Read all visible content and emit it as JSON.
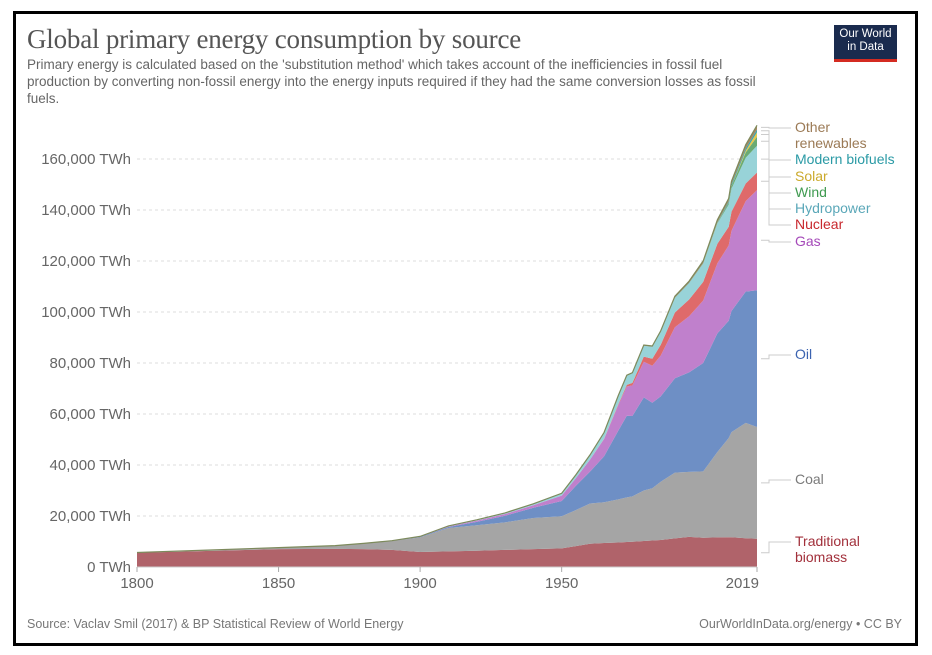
{
  "header": {
    "title": "Global primary energy consumption by source",
    "subtitle": "Primary energy is calculated based on the 'substitution method' which takes account of the inefficiencies in fossil fuel production by converting non-fossil energy into the energy inputs required if they had the same conversion losses as fossil fuels.",
    "logo_line1": "Our World",
    "logo_line2": "in Data"
  },
  "footer": {
    "source": "Source: Vaclav Smil (2017) & BP Statistical Review of World Energy",
    "link": "OurWorldInData.org/energy • CC BY"
  },
  "chart_data": {
    "type": "area",
    "stacked": true,
    "title": "Global primary energy consumption by source",
    "xlabel": "",
    "ylabel": "",
    "xlim": [
      1800,
      2019
    ],
    "ylim": [
      0,
      170000
    ],
    "y_ticks": [
      0,
      20000,
      40000,
      60000,
      80000,
      100000,
      120000,
      140000,
      160000
    ],
    "y_tick_labels": [
      "0 TWh",
      "20,000 TWh",
      "40,000 TWh",
      "60,000 TWh",
      "80,000 TWh",
      "100,000 TWh",
      "120,000 TWh",
      "140,000 TWh",
      "160,000 TWh"
    ],
    "x_ticks": [
      1800,
      1850,
      1900,
      1950,
      2019
    ],
    "x_tick_labels": [
      "1800",
      "1850",
      "1900",
      "1950",
      "2019"
    ],
    "grid": "horizontal-dashed",
    "legend_placement": "right-inline",
    "x": [
      1800,
      1850,
      1870,
      1880,
      1890,
      1900,
      1910,
      1920,
      1930,
      1940,
      1950,
      1955,
      1960,
      1965,
      1970,
      1973,
      1975,
      1979,
      1982,
      1985,
      1990,
      1995,
      2000,
      2005,
      2009,
      2010,
      2015,
      2019
    ],
    "series": [
      {
        "name": "Traditional biomass",
        "color": "#b0636a",
        "label_color": "#a2303b",
        "values": [
          5600,
          7000,
          7100,
          7000,
          6700,
          5900,
          6100,
          6400,
          6700,
          7000,
          7300,
          8200,
          9100,
          9400,
          9600,
          9800,
          9900,
          10200,
          10400,
          10600,
          11200,
          11800,
          11500,
          11600,
          11700,
          11700,
          11300,
          11100
        ]
      },
      {
        "name": "Coal",
        "color": "#a5a5a5",
        "label_color": "#7a7a7a",
        "values": [
          100,
          600,
          1300,
          2200,
          3500,
          5700,
          9200,
          10000,
          10800,
          12200,
          12600,
          14100,
          15800,
          16000,
          16900,
          17500,
          17800,
          19800,
          20500,
          22800,
          25800,
          25500,
          26000,
          33500,
          38900,
          41200,
          45200,
          43800
        ]
      },
      {
        "name": "Oil",
        "color": "#6e8fc5",
        "label_color": "#3b63b0",
        "values": [
          0,
          0,
          0,
          50,
          100,
          200,
          400,
          1300,
          2600,
          4000,
          6000,
          9500,
          12500,
          18000,
          27000,
          32000,
          31500,
          36500,
          33500,
          33500,
          37000,
          39000,
          42500,
          46500,
          46000,
          47500,
          51500,
          53600
        ]
      },
      {
        "name": "Gas",
        "color": "#c080cc",
        "label_color": "#a549b9",
        "values": [
          0,
          0,
          0,
          0,
          0,
          100,
          200,
          500,
          700,
          1000,
          2100,
          3000,
          4700,
          6800,
          10000,
          11500,
          12000,
          14000,
          14500,
          16000,
          20000,
          22000,
          24500,
          27500,
          29500,
          31500,
          35500,
          39300
        ]
      },
      {
        "name": "Nuclear",
        "color": "#df6a6a",
        "label_color": "#c8282e",
        "values": [
          0,
          0,
          0,
          0,
          0,
          0,
          0,
          0,
          0,
          0,
          0,
          0,
          0,
          100,
          300,
          600,
          1000,
          2000,
          2800,
          4200,
          5800,
          6600,
          7300,
          7700,
          7300,
          7400,
          6900,
          6900
        ]
      },
      {
        "name": "Hydropower",
        "color": "#98d3d8",
        "label_color": "#5aa7b8",
        "values": [
          0,
          0,
          0,
          0,
          0,
          100,
          200,
          300,
          400,
          600,
          900,
          1300,
          1800,
          2400,
          3300,
          3600,
          3800,
          4300,
          4600,
          5000,
          5700,
          6400,
          7200,
          7900,
          8700,
          9100,
          10100,
          10500
        ]
      },
      {
        "name": "Wind",
        "color": "#6aab73",
        "label_color": "#3f9a50",
        "values": [
          0,
          0,
          0,
          0,
          0,
          0,
          0,
          0,
          0,
          0,
          0,
          0,
          0,
          0,
          0,
          0,
          0,
          0,
          0,
          0,
          10,
          20,
          80,
          260,
          700,
          900,
          2100,
          3500
        ]
      },
      {
        "name": "Solar",
        "color": "#e8c84a",
        "label_color": "#cbaa2c",
        "values": [
          0,
          0,
          0,
          0,
          0,
          0,
          0,
          0,
          0,
          0,
          0,
          0,
          0,
          0,
          0,
          0,
          0,
          0,
          0,
          0,
          1,
          1,
          3,
          10,
          50,
          90,
          650,
          1800
        ]
      },
      {
        "name": "Modern biofuels",
        "color": "#3fa5ae",
        "label_color": "#2a9aa5",
        "values": [
          0,
          0,
          0,
          0,
          0,
          0,
          0,
          0,
          0,
          0,
          0,
          0,
          0,
          0,
          0,
          0,
          0,
          0,
          50,
          100,
          120,
          150,
          150,
          250,
          600,
          700,
          900,
          1100
        ]
      },
      {
        "name": "Other renewables",
        "color": "#a58761",
        "label_color": "#9b7a55",
        "values": [
          0,
          0,
          0,
          0,
          0,
          0,
          0,
          0,
          0,
          0,
          0,
          0,
          50,
          100,
          150,
          200,
          200,
          250,
          300,
          400,
          550,
          650,
          800,
          950,
          1100,
          1200,
          1450,
          1600
        ]
      }
    ]
  }
}
